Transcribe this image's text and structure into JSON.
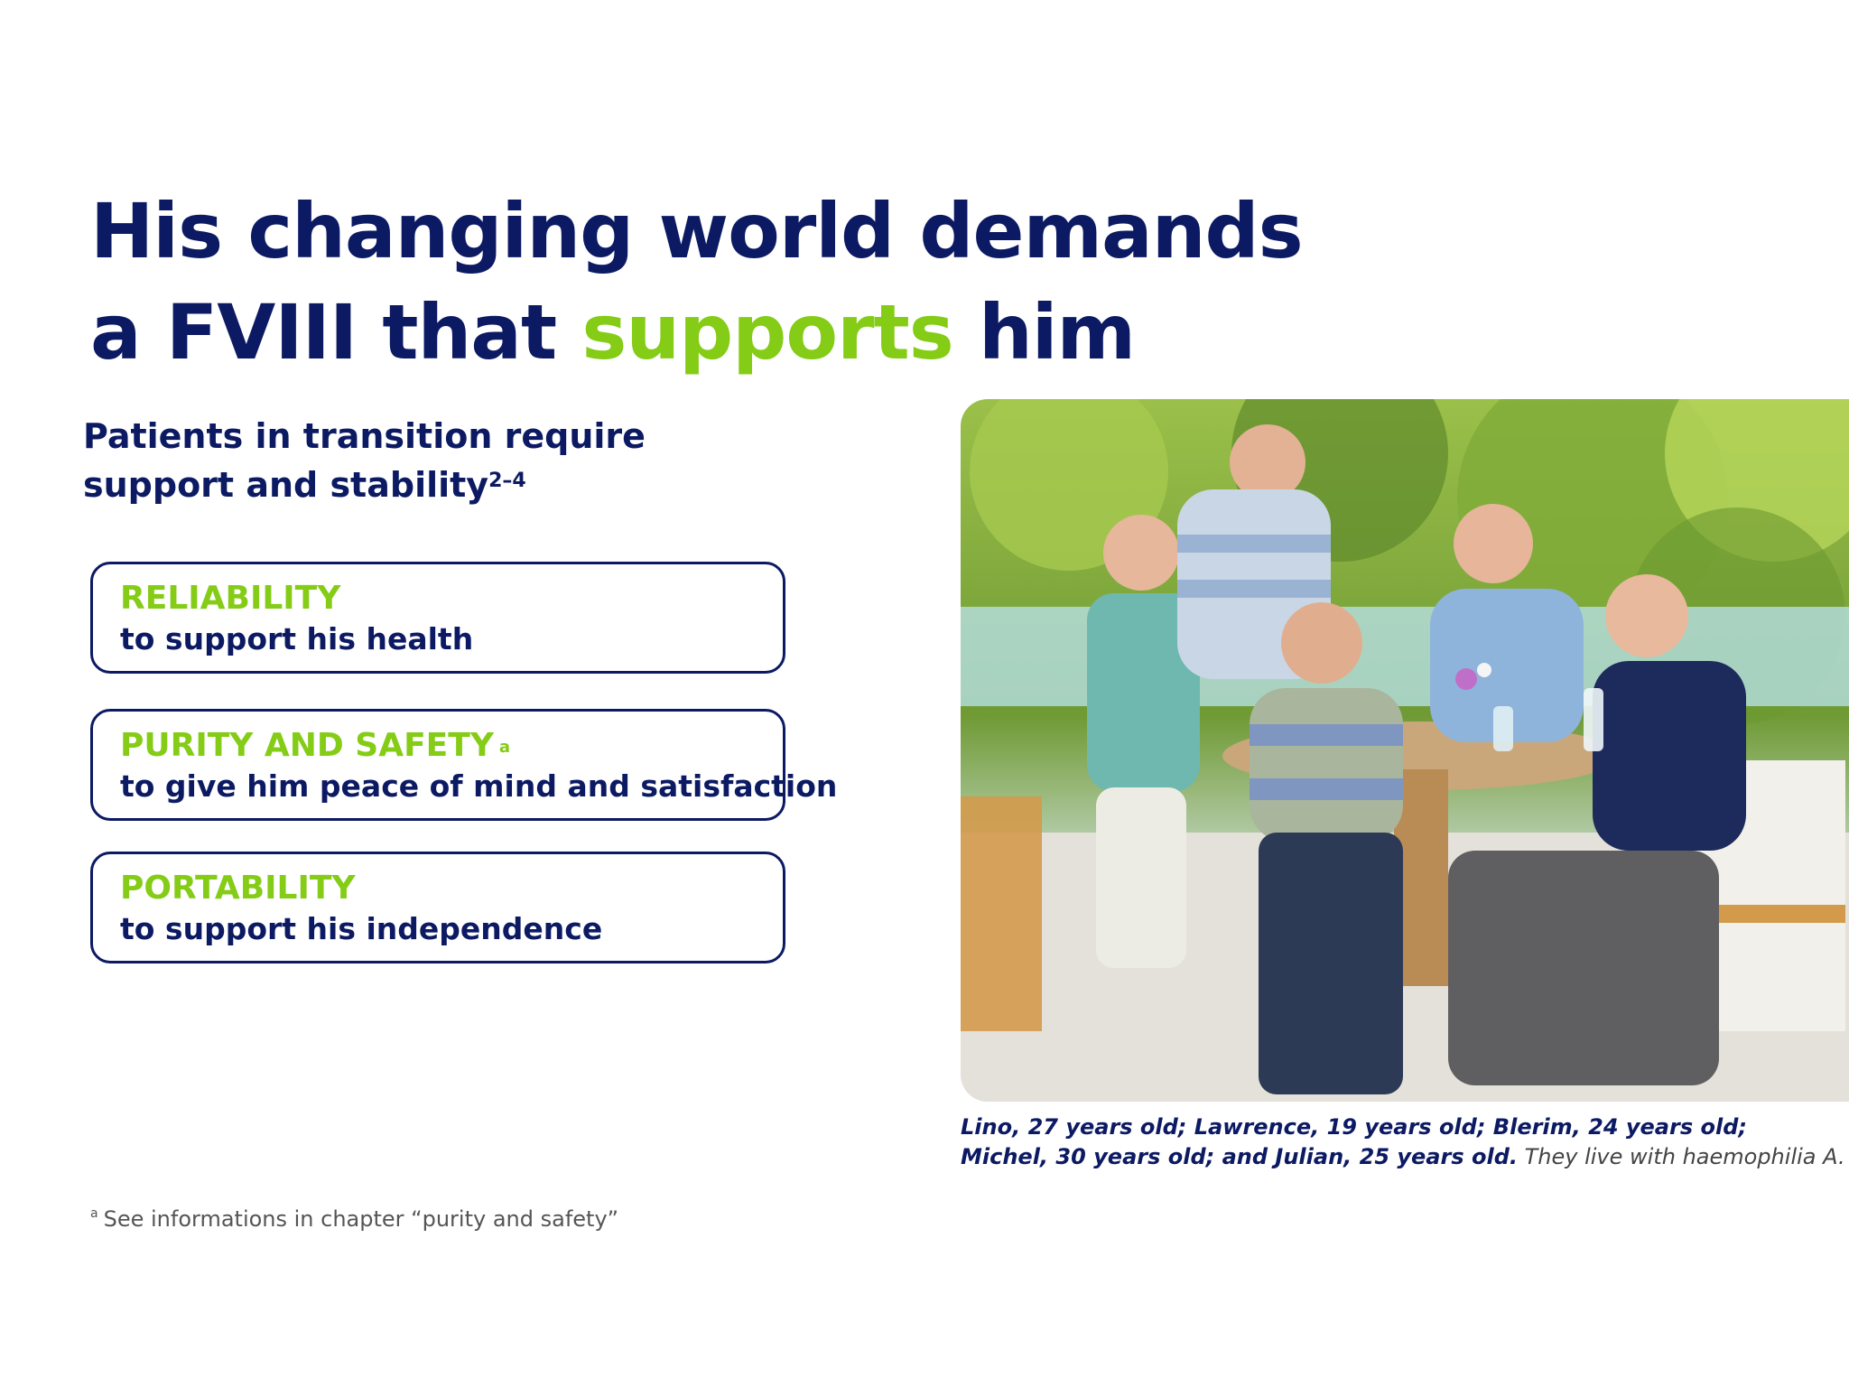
{
  "headline": {
    "line1": "His changing world demands",
    "line2_prefix": "a FVIII that ",
    "line2_highlight": "supports",
    "line2_suffix": " him"
  },
  "subheading": {
    "line1": "Patients in transition require",
    "line2": "support and stability",
    "ref": "2–4"
  },
  "cards": [
    {
      "title": "RELIABILITY",
      "marker": "",
      "text": "to support his health"
    },
    {
      "title": "PURITY AND SAFETY",
      "marker": "a",
      "text": "to give him peace of mind and satisfaction"
    },
    {
      "title": "PORTABILITY",
      "marker": "",
      "text": "to support his independence"
    }
  ],
  "photo_caption": {
    "bold_line1": "Lino, 27 years old; Lawrence, 19 years old; Blerim, 24 years old;",
    "bold_line2": "Michel, 30 years old; and Julian, 25 years old.",
    "light": " They live with haemophilia A."
  },
  "footnote": {
    "marker": "a",
    "text": "See informations in chapter “purity and safety”"
  },
  "colors": {
    "navy": "#0c1a63",
    "green": "#84cc16"
  }
}
